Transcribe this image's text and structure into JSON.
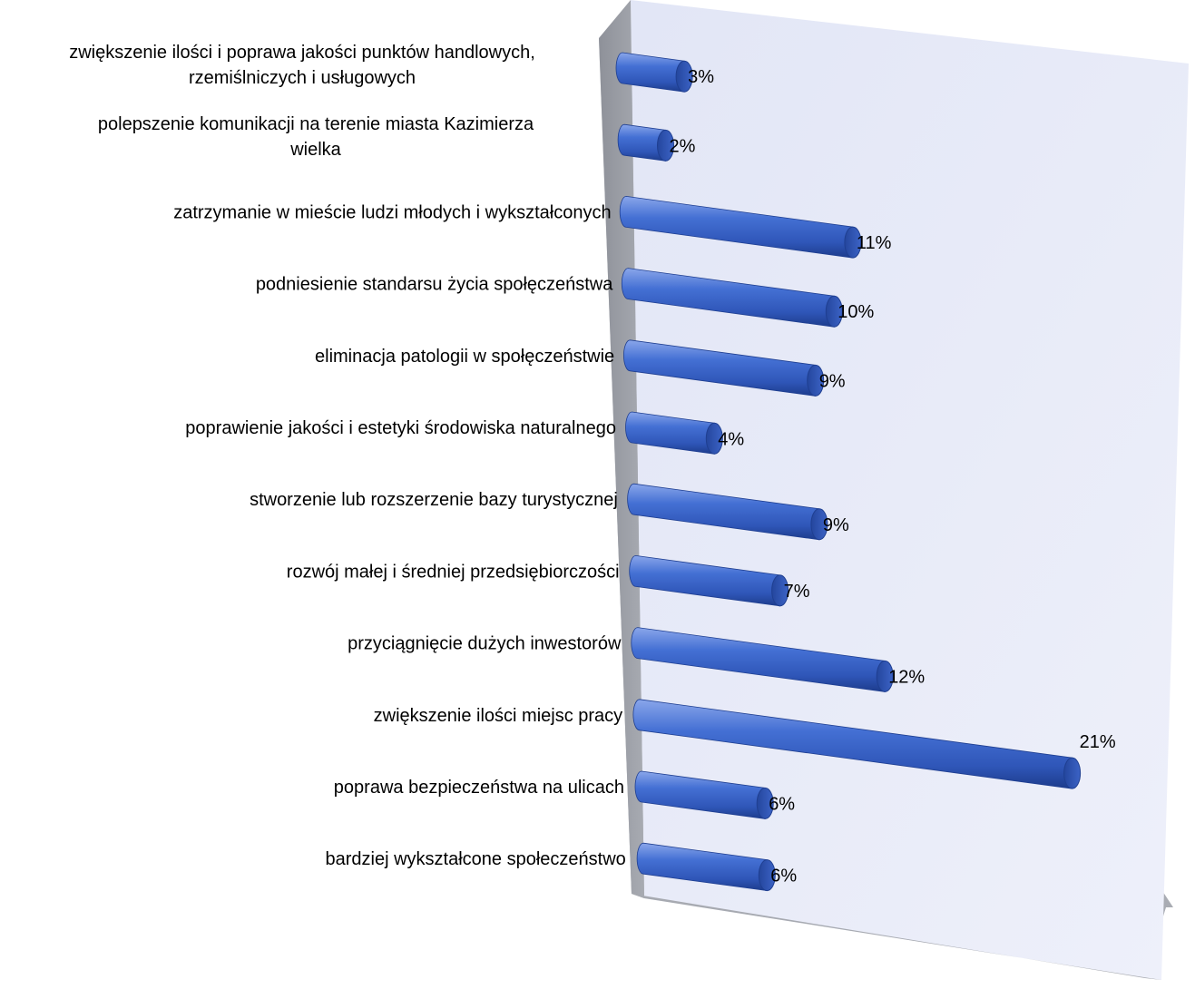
{
  "chart_data": {
    "type": "bar",
    "orientation": "horizontal",
    "three_d": true,
    "categories": [
      [
        "zwiększenie ilości i poprawa jakości punktów handlowych,",
        "rzemiślniczych i usługowych"
      ],
      [
        "polepszenie komunikacji na terenie miasta Kazimierza",
        "wielka"
      ],
      [
        "zatrzymanie w mieście ludzi młodych i wykształconych"
      ],
      [
        "podniesienie standarsu życia społęczeństwa"
      ],
      [
        "eliminacja patologii w społęczeństwie"
      ],
      [
        "poprawienie jakości i estetyki środowiska naturalnego"
      ],
      [
        "stworzenie lub rozszerzenie bazy turystycznej"
      ],
      [
        "rozwój małej i średniej przedsiębiorczości"
      ],
      [
        "przyciągnięcie dużych inwestorów"
      ],
      [
        "zwiększenie ilości miejsc pracy"
      ],
      [
        "poprawa bezpieczeństwa na ulicach"
      ],
      [
        "bardziej wykształcone społeczeństwo"
      ]
    ],
    "values": [
      3,
      2,
      11,
      10,
      9,
      4,
      9,
      7,
      12,
      21,
      6,
      6
    ],
    "value_labels": [
      "3%",
      "2%",
      "11%",
      "10%",
      "9%",
      "4%",
      "9%",
      "7%",
      "12%",
      "21%",
      "6%",
      "6%"
    ],
    "unit": "%",
    "xlim": [
      0,
      21
    ],
    "grid": false,
    "legend": "none",
    "colors": {
      "bar": "#3b63c9",
      "bar_highlight": "#7f9ee6",
      "bar_dark": "#1f3f91",
      "bar_cap": "#2a4fae",
      "back_wall": "#e9ecf8",
      "side_wall": "#9fa2aa",
      "floor": "#b3b6bd"
    }
  }
}
